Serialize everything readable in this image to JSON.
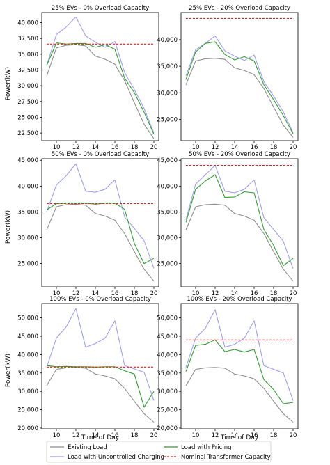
{
  "figure": {
    "ylabel": "Power(kW)",
    "xlabel": "Time of Day",
    "colors": {
      "existing": "#8c8c8c",
      "uncontrolled": "#9d9dfa",
      "pricing": "#2ca02c",
      "capacity": "#e8221c"
    }
  },
  "legend": {
    "existing": "Existing Load",
    "uncontrolled": "Load with Uncontrolled Charging",
    "pricing": "Load with Pricing",
    "capacity": "Nominal Transformer Capacity"
  },
  "chart_data": [
    {
      "type": "line",
      "title": "25% EVs - 0% Overload Capacity",
      "xlabel": "",
      "ylabel": "Power(kW)",
      "x": [
        9,
        10,
        11,
        12,
        13,
        14,
        15,
        16,
        17,
        18,
        19,
        20
      ],
      "xticks": [
        10,
        12,
        14,
        16,
        18,
        20
      ],
      "xlim": [
        8.5,
        20.5
      ],
      "ylim": [
        21300,
        41600
      ],
      "yticks": [
        22500,
        25000,
        27500,
        30000,
        32500,
        35000,
        37500,
        40000
      ],
      "ytick_labels": [
        "22,500",
        "25,000",
        "27,500",
        "30,000",
        "32,500",
        "35,000",
        "37,500",
        "40,000"
      ],
      "grid": false,
      "series": [
        {
          "name": "Existing Load",
          "key": "existing",
          "values": [
            31500,
            36000,
            36400,
            36500,
            36300,
            34700,
            34200,
            33400,
            30800,
            27300,
            23900,
            21600
          ],
          "dashed": false
        },
        {
          "name": "Load with Uncontrolled Charging",
          "key": "uncontrolled",
          "values": [
            33200,
            38100,
            39300,
            40900,
            37900,
            36900,
            36100,
            37000,
            32100,
            29400,
            26400,
            22500
          ],
          "dashed": false
        },
        {
          "name": "Load with Pricing",
          "key": "pricing",
          "values": [
            33200,
            36800,
            36600,
            36700,
            36700,
            36100,
            36500,
            35800,
            31200,
            28900,
            25800,
            22300
          ],
          "dashed": false
        },
        {
          "name": "Nominal Transformer Capacity",
          "key": "capacity",
          "values": [
            36600,
            36600,
            36600,
            36600,
            36600,
            36600,
            36600,
            36600,
            36600,
            36600,
            36600,
            36600
          ],
          "dashed": true
        }
      ]
    },
    {
      "type": "line",
      "title": "25% EVs - 20% Overload Capacity",
      "xlabel": "",
      "ylabel": "",
      "x": [
        9,
        10,
        11,
        12,
        13,
        14,
        15,
        16,
        17,
        18,
        19,
        20
      ],
      "xticks": [
        10,
        12,
        14,
        16,
        18,
        20
      ],
      "xlim": [
        8.5,
        20.5
      ],
      "ylim": [
        21000,
        45100
      ],
      "yticks": [
        25000,
        30000,
        35000,
        40000
      ],
      "ytick_labels": [
        "25,000",
        "30,000",
        "35,000",
        "40,000"
      ],
      "grid": false,
      "series": [
        {
          "name": "Existing Load",
          "key": "existing",
          "values": [
            31500,
            36000,
            36400,
            36500,
            36300,
            34700,
            34200,
            33400,
            30800,
            27300,
            23900,
            21600
          ],
          "dashed": false
        },
        {
          "name": "Load with Uncontrolled Charging",
          "key": "uncontrolled",
          "values": [
            33200,
            38100,
            39300,
            40700,
            37900,
            36900,
            36100,
            37100,
            32100,
            29400,
            26400,
            22500
          ],
          "dashed": false
        },
        {
          "name": "Load with Pricing",
          "key": "pricing",
          "values": [
            32500,
            37700,
            39300,
            39600,
            37200,
            36200,
            36800,
            36000,
            31500,
            28700,
            25700,
            22300
          ],
          "dashed": false
        },
        {
          "name": "Nominal Transformer Capacity",
          "key": "capacity",
          "values": [
            44000,
            44000,
            44000,
            44000,
            44000,
            44000,
            44000,
            44000,
            44000,
            44000,
            44000,
            44000
          ],
          "dashed": true
        }
      ]
    },
    {
      "type": "line",
      "title": "50% EVs - 0% Overload Capacity",
      "xlabel": "",
      "ylabel": "Power(kW)",
      "x": [
        9,
        10,
        11,
        12,
        13,
        14,
        15,
        16,
        17,
        18,
        19,
        20
      ],
      "xticks": [
        10,
        12,
        14,
        16,
        18,
        20
      ],
      "xlim": [
        8.5,
        20.5
      ],
      "ylim": [
        20500,
        45300
      ],
      "yticks": [
        25000,
        30000,
        35000,
        40000,
        45000
      ],
      "ytick_labels": [
        "25,000",
        "30,000",
        "35,000",
        "40,000",
        "45,000"
      ],
      "grid": false,
      "series": [
        {
          "name": "Existing Load",
          "key": "existing",
          "values": [
            31500,
            36000,
            36400,
            36500,
            36300,
            34700,
            34200,
            33400,
            30800,
            27300,
            23900,
            21600
          ],
          "dashed": false
        },
        {
          "name": "Load with Uncontrolled Charging",
          "key": "uncontrolled",
          "values": [
            35000,
            40200,
            42000,
            44300,
            39000,
            38800,
            39400,
            41200,
            34000,
            31800,
            29400,
            24100
          ],
          "dashed": false
        },
        {
          "name": "Load with Pricing",
          "key": "pricing",
          "values": [
            35400,
            36600,
            36700,
            36700,
            36700,
            36500,
            36700,
            36700,
            35500,
            28900,
            25000,
            26000
          ],
          "dashed": false
        },
        {
          "name": "Nominal Transformer Capacity",
          "key": "capacity",
          "values": [
            36600,
            36600,
            36600,
            36600,
            36600,
            36600,
            36600,
            36600,
            36600,
            36600,
            36600,
            36600
          ],
          "dashed": true
        }
      ]
    },
    {
      "type": "line",
      "title": "50% EVs - 20% Overload Capacity",
      "xlabel": "",
      "ylabel": "",
      "x": [
        9,
        10,
        11,
        12,
        13,
        14,
        15,
        16,
        17,
        18,
        19,
        20
      ],
      "xticks": [
        10,
        12,
        14,
        16,
        18,
        20
      ],
      "xlim": [
        8.5,
        20.5
      ],
      "ylim": [
        20500,
        45300
      ],
      "yticks": [
        25000,
        30000,
        35000,
        40000,
        45000
      ],
      "ytick_labels": [
        "25,000",
        "30,000",
        "35,000",
        "40,000",
        "45,000"
      ],
      "grid": false,
      "series": [
        {
          "name": "Existing Load",
          "key": "existing",
          "values": [
            31500,
            36000,
            36400,
            36500,
            36300,
            34700,
            34200,
            33400,
            30800,
            27300,
            23900,
            21600
          ],
          "dashed": false
        },
        {
          "name": "Load with Uncontrolled Charging",
          "key": "uncontrolled",
          "values": [
            33500,
            40400,
            42200,
            44000,
            39000,
            38700,
            39400,
            41200,
            33900,
            31600,
            29300,
            24000
          ],
          "dashed": false
        },
        {
          "name": "Load with Pricing",
          "key": "pricing",
          "values": [
            33000,
            39400,
            41000,
            42200,
            37800,
            37900,
            38900,
            38700,
            31600,
            28500,
            24600,
            26000
          ],
          "dashed": false
        },
        {
          "name": "Nominal Transformer Capacity",
          "key": "capacity",
          "values": [
            44000,
            44000,
            44000,
            44000,
            44000,
            44000,
            44000,
            44000,
            44000,
            44000,
            44000,
            44000
          ],
          "dashed": true
        }
      ]
    },
    {
      "type": "line",
      "title": "100% EVs - 0% Overload Capacity",
      "xlabel": "Time of Day",
      "ylabel": "Power(kW)",
      "x": [
        9,
        10,
        11,
        12,
        13,
        14,
        15,
        16,
        17,
        18,
        19,
        20
      ],
      "xticks": [
        10,
        12,
        14,
        16,
        18,
        20
      ],
      "xlim": [
        8.5,
        20.5
      ],
      "ylim": [
        19800,
        53900
      ],
      "yticks": [
        20000,
        25000,
        30000,
        35000,
        40000,
        45000,
        50000
      ],
      "ytick_labels": [
        "20,000",
        "25,000",
        "30,000",
        "35,000",
        "40,000",
        "45,000",
        "50,000"
      ],
      "grid": false,
      "series": [
        {
          "name": "Existing Load",
          "key": "existing",
          "values": [
            31500,
            36000,
            36400,
            36500,
            36300,
            34700,
            34200,
            33400,
            30800,
            27300,
            23900,
            21600
          ],
          "dashed": false
        },
        {
          "name": "Load with Uncontrolled Charging",
          "key": "uncontrolled",
          "values": [
            36500,
            44500,
            47500,
            52500,
            42000,
            43000,
            44500,
            49200,
            37000,
            36100,
            35200,
            27500
          ],
          "dashed": false
        },
        {
          "name": "Load with Pricing",
          "key": "pricing",
          "values": [
            37000,
            36700,
            36800,
            36700,
            36700,
            36600,
            36700,
            36700,
            35600,
            34700,
            25700,
            30000
          ],
          "dashed": false
        },
        {
          "name": "Nominal Transformer Capacity",
          "key": "capacity",
          "values": [
            36600,
            36600,
            36600,
            36600,
            36600,
            36600,
            36600,
            36600,
            36600,
            36600,
            36600,
            36600
          ],
          "dashed": true
        }
      ]
    },
    {
      "type": "line",
      "title": "100% EVs - 20% Overload Capacity",
      "xlabel": "Time of Day",
      "ylabel": "",
      "x": [
        9,
        10,
        11,
        12,
        13,
        14,
        15,
        16,
        17,
        18,
        19,
        20
      ],
      "xticks": [
        10,
        12,
        14,
        16,
        18,
        20
      ],
      "xlim": [
        8.5,
        20.5
      ],
      "ylim": [
        19800,
        53900
      ],
      "yticks": [
        20000,
        25000,
        30000,
        35000,
        40000,
        45000,
        50000
      ],
      "ytick_labels": [
        "20,000",
        "25,000",
        "30,000",
        "35,000",
        "40,000",
        "45,000",
        "50,000"
      ],
      "grid": false,
      "series": [
        {
          "name": "Existing Load",
          "key": "existing",
          "values": [
            31500,
            36000,
            36400,
            36500,
            36300,
            34700,
            34200,
            33400,
            30800,
            27300,
            23900,
            21600
          ],
          "dashed": false
        },
        {
          "name": "Load with Uncontrolled Charging",
          "key": "uncontrolled",
          "values": [
            36500,
            44500,
            47200,
            52200,
            42000,
            42800,
            44500,
            49200,
            37000,
            36000,
            35000,
            27500
          ],
          "dashed": false
        },
        {
          "name": "Load with Pricing",
          "key": "pricing",
          "values": [
            35400,
            42500,
            42800,
            44000,
            40800,
            41400,
            40700,
            41400,
            33200,
            30500,
            26600,
            27000
          ],
          "dashed": false
        },
        {
          "name": "Nominal Transformer Capacity",
          "key": "capacity",
          "values": [
            44000,
            44000,
            44000,
            44000,
            44000,
            44000,
            44000,
            44000,
            44000,
            44000,
            44000,
            44000
          ],
          "dashed": true
        }
      ]
    }
  ]
}
